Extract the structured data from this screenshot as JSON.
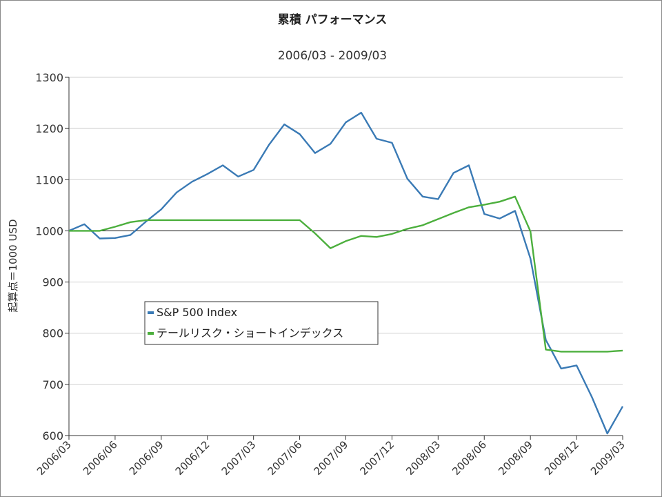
{
  "chart_data": {
    "type": "line",
    "title": "累積 パフォーマンス",
    "subtitle": "2006/03 - 2009/03",
    "ylabel": "起算点＝1000 USD",
    "xlabel": "",
    "ylim": [
      600,
      1300
    ],
    "yticks": [
      600,
      700,
      800,
      900,
      1000,
      1100,
      1200,
      1300
    ],
    "reference_line": 1000,
    "grid": true,
    "legend_position": "center-left",
    "x": [
      "2006/03",
      "2006/04",
      "2006/05",
      "2006/06",
      "2006/07",
      "2006/08",
      "2006/09",
      "2006/10",
      "2006/11",
      "2006/12",
      "2007/01",
      "2007/02",
      "2007/03",
      "2007/04",
      "2007/05",
      "2007/06",
      "2007/07",
      "2007/08",
      "2007/09",
      "2007/10",
      "2007/11",
      "2007/12",
      "2008/01",
      "2008/02",
      "2008/03",
      "2008/04",
      "2008/05",
      "2008/06",
      "2008/07",
      "2008/08",
      "2008/09",
      "2008/10",
      "2008/11",
      "2008/12",
      "2009/01",
      "2009/02",
      "2009/03"
    ],
    "xtick_labels": [
      "2006/03",
      "2006/06",
      "2006/09",
      "2006/12",
      "2007/03",
      "2007/06",
      "2007/09",
      "2007/12",
      "2008/03",
      "2008/06",
      "2008/09",
      "2008/12",
      "2009/03"
    ],
    "series": [
      {
        "name": "S&P 500 Index",
        "color": "#3a7ab5",
        "values": [
          1000,
          1013,
          985,
          986,
          992,
          1018,
          1042,
          1075,
          1096,
          1111,
          1128,
          1106,
          1119,
          1168,
          1208,
          1189,
          1152,
          1170,
          1212,
          1231,
          1180,
          1172,
          1102,
          1067,
          1062,
          1113,
          1128,
          1033,
          1024,
          1039,
          946,
          787,
          731,
          737,
          675,
          604,
          657
        ]
      },
      {
        "name": "テールリスク・ショートインデックス",
        "color": "#4caf3d",
        "values": [
          1000,
          1000,
          1000,
          1008,
          1017,
          1021,
          1021,
          1021,
          1021,
          1021,
          1021,
          1021,
          1021,
          1021,
          1021,
          1021,
          995,
          966,
          980,
          990,
          988,
          994,
          1004,
          1011,
          1023,
          1035,
          1046,
          1051,
          1057,
          1067,
          999,
          768,
          764,
          764,
          764,
          764,
          766
        ]
      }
    ]
  }
}
